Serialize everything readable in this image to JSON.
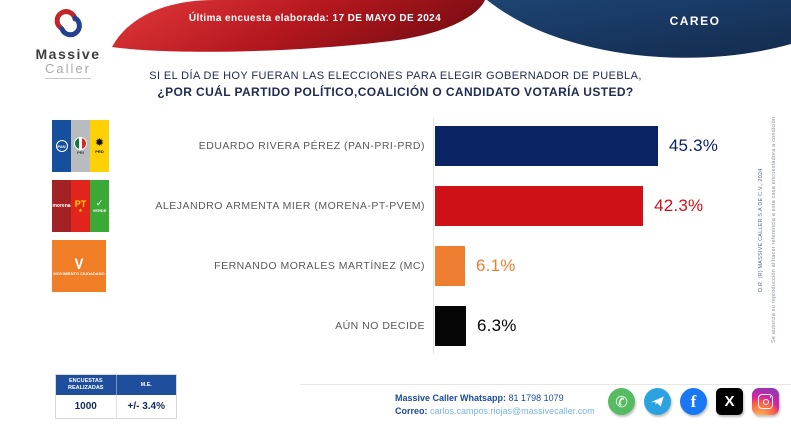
{
  "header": {
    "brand_line1": "Massive",
    "brand_line2": "Caller",
    "ribbon_text": "Última encuesta elaborada: 17 DE MAYO DE 2024",
    "badge": "CAREO"
  },
  "question": {
    "line1": "SI EL DÍA DE HOY FUERAN LAS ELECCIONES PARA ELEGIR GOBERNADOR DE PUEBLA,",
    "line2": "¿POR CUÁL PARTIDO POLÍTICO,COALICIÓN O CANDIDATO VOTARÍA USTED?"
  },
  "chart_data": {
    "type": "bar",
    "orientation": "horizontal",
    "title": "SI EL DÍA DE HOY FUERAN LAS ELECCIONES PARA ELEGIR GOBERNADOR DE PUEBLA, ¿POR CUÁL PARTIDO POLÍTICO,COALICIÓN O CANDIDATO VOTARÍA USTED?",
    "categories": [
      "EDUARDO RIVERA PÉREZ (PAN-PRI-PRD)",
      "ALEJANDRO ARMENTA MIER (MORENA-PT-PVEM)",
      "FERNANDO MORALES MARTÍNEZ (MC)",
      "AÚN NO DECIDE"
    ],
    "values": [
      45.3,
      42.3,
      6.1,
      6.3
    ],
    "value_labels": [
      "45.3%",
      "42.3%",
      "6.1%",
      "6.3%"
    ],
    "bar_colors": [
      "#0a2463",
      "#ce1017",
      "#ed7d31",
      "#050505"
    ],
    "xlim": [
      0,
      100
    ],
    "grid": false,
    "legend": false
  },
  "parties": {
    "pan": {
      "abbr": "PAN",
      "color": "#164f9e"
    },
    "pri": {
      "abbr": "PRI",
      "color": "#b9bcbf"
    },
    "prd": {
      "abbr": "PRD",
      "color": "#fed105"
    },
    "morena": {
      "abbr": "morena",
      "color": "#a32226"
    },
    "pt": {
      "abbr": "PT",
      "color": "#e2251c"
    },
    "verde": {
      "abbr": "VERDE",
      "color": "#3aa935"
    },
    "mc": {
      "abbr": "MOVIMIENTO CIUDADANO",
      "color": "#f07e26"
    }
  },
  "stats": {
    "col1_header": "ENCUESTAS REALIZADAS",
    "col2_header": "M.E.",
    "col1_value": "1000",
    "col2_value": "+/- 3.4%"
  },
  "contact": {
    "whatsapp_label": "Massive Caller Whatsapp:",
    "whatsapp_number": " 81 1798 1079",
    "email_label": "Correo:",
    "email": " carlos.campos.riojas@massivecaller.com"
  },
  "social": [
    "whatsapp",
    "telegram",
    "facebook",
    "x",
    "instagram"
  ],
  "side_notes": {
    "line1": "D.R. (R) MASSIVE CALLER S.A DE C.V., 2024",
    "line2": "Se autoriza su reproducción al hacer referencia a esta casa encuestadora a condición"
  },
  "colors": {
    "navy": "#0a2463",
    "red": "#ce1017",
    "orange": "#ed7d31",
    "black": "#050505",
    "ribbon_red_light": "#e23a3c",
    "ribbon_red_dark": "#7e0e14",
    "badge_blue_light": "#1d4472",
    "badge_blue_dark": "#142d52",
    "table_header_blue": "#1f4e9c"
  }
}
